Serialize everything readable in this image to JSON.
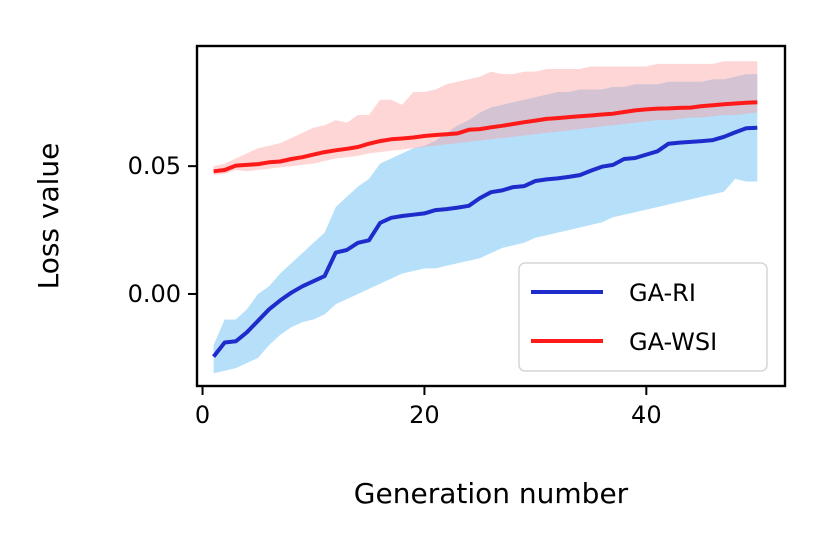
{
  "chart_data": {
    "type": "line",
    "title": "",
    "xlabel": "Generation number",
    "ylabel": "Loss value",
    "xlim": [
      -0.5,
      52.5
    ],
    "ylim": [
      -0.036,
      0.097
    ],
    "xticks": [
      0,
      20,
      40
    ],
    "xtick_labels": [
      "0",
      "20",
      "40"
    ],
    "yticks": [
      0.0,
      0.05
    ],
    "ytick_labels": [
      "0.00",
      "0.05"
    ],
    "grid": false,
    "legend_position": "lower-right",
    "legend_entries": [
      "GA-RI",
      "GA-WSI"
    ],
    "x": [
      1,
      2,
      3,
      4,
      5,
      6,
      7,
      8,
      9,
      10,
      11,
      12,
      13,
      14,
      15,
      16,
      17,
      18,
      19,
      20,
      21,
      22,
      23,
      24,
      25,
      26,
      27,
      28,
      29,
      30,
      31,
      32,
      33,
      34,
      35,
      36,
      37,
      38,
      39,
      40,
      41,
      42,
      43,
      44,
      45,
      46,
      47,
      48,
      49,
      50
    ],
    "series": [
      {
        "name": "GA-RI",
        "color": "#1f2ccc",
        "band_color": "#8fd0f7",
        "values": [
          -0.0245,
          -0.019,
          -0.0185,
          -0.015,
          -0.0105,
          -0.006,
          -0.0025,
          0.0005,
          0.003,
          0.005,
          0.007,
          0.0162,
          0.0172,
          0.02,
          0.021,
          0.0278,
          0.0298,
          0.0305,
          0.031,
          0.0315,
          0.0328,
          0.0332,
          0.0338,
          0.0345,
          0.0375,
          0.0398,
          0.0405,
          0.0418,
          0.0422,
          0.0442,
          0.0448,
          0.0452,
          0.0458,
          0.0465,
          0.0482,
          0.0498,
          0.0505,
          0.0528,
          0.0532,
          0.0545,
          0.0558,
          0.0588,
          0.0592,
          0.0595,
          0.0598,
          0.0602,
          0.0615,
          0.0632,
          0.0648,
          0.065
        ],
        "lower": [
          -0.031,
          -0.03,
          -0.029,
          -0.027,
          -0.025,
          -0.02,
          -0.016,
          -0.013,
          -0.011,
          -0.01,
          -0.008,
          -0.004,
          -0.002,
          0.0,
          0.002,
          0.004,
          0.006,
          0.008,
          0.009,
          0.01,
          0.01,
          0.011,
          0.012,
          0.013,
          0.014,
          0.016,
          0.018,
          0.019,
          0.02,
          0.022,
          0.023,
          0.024,
          0.025,
          0.026,
          0.027,
          0.028,
          0.03,
          0.031,
          0.032,
          0.033,
          0.034,
          0.035,
          0.036,
          0.037,
          0.038,
          0.039,
          0.04,
          0.045,
          0.044,
          0.044
        ],
        "upper": [
          -0.02,
          -0.01,
          -0.01,
          -0.006,
          0.0,
          0.003,
          0.008,
          0.012,
          0.016,
          0.02,
          0.024,
          0.034,
          0.038,
          0.042,
          0.045,
          0.051,
          0.053,
          0.055,
          0.057,
          0.058,
          0.06,
          0.063,
          0.066,
          0.068,
          0.071,
          0.073,
          0.074,
          0.075,
          0.076,
          0.077,
          0.078,
          0.079,
          0.079,
          0.08,
          0.08,
          0.08,
          0.081,
          0.081,
          0.082,
          0.082,
          0.082,
          0.083,
          0.083,
          0.083,
          0.083,
          0.084,
          0.084,
          0.085,
          0.086,
          0.086
        ]
      },
      {
        "name": "GA-WSI",
        "color": "#ff1a1a",
        "band_color": "#ff9d9d",
        "values": [
          0.048,
          0.0485,
          0.0502,
          0.0505,
          0.0508,
          0.0515,
          0.0518,
          0.0528,
          0.0535,
          0.0545,
          0.0555,
          0.0562,
          0.0568,
          0.0575,
          0.0588,
          0.0598,
          0.0605,
          0.0608,
          0.0612,
          0.0618,
          0.0622,
          0.0625,
          0.0628,
          0.0642,
          0.0645,
          0.0652,
          0.0658,
          0.0665,
          0.0672,
          0.0678,
          0.0685,
          0.0688,
          0.0692,
          0.0695,
          0.0698,
          0.0702,
          0.0705,
          0.0712,
          0.0718,
          0.0722,
          0.0725,
          0.0726,
          0.0728,
          0.0729,
          0.0735,
          0.0738,
          0.0742,
          0.0745,
          0.0748,
          0.075
        ],
        "lower": [
          0.0465,
          0.047,
          0.0485,
          0.048,
          0.0485,
          0.049,
          0.0495,
          0.05,
          0.0505,
          0.051,
          0.052,
          0.053,
          0.0535,
          0.054,
          0.055,
          0.0555,
          0.056,
          0.0565,
          0.057,
          0.0575,
          0.058,
          0.0585,
          0.059,
          0.0595,
          0.06,
          0.0605,
          0.061,
          0.0615,
          0.062,
          0.0625,
          0.063,
          0.0635,
          0.064,
          0.0645,
          0.065,
          0.0655,
          0.066,
          0.0665,
          0.067,
          0.0675,
          0.068,
          0.068,
          0.0685,
          0.069,
          0.069,
          0.0695,
          0.07,
          0.07,
          0.0705,
          0.071
        ],
        "upper": [
          0.05,
          0.051,
          0.053,
          0.055,
          0.057,
          0.058,
          0.059,
          0.061,
          0.063,
          0.065,
          0.066,
          0.068,
          0.067,
          0.07,
          0.07,
          0.076,
          0.076,
          0.074,
          0.079,
          0.079,
          0.08,
          0.082,
          0.083,
          0.084,
          0.085,
          0.087,
          0.086,
          0.086,
          0.087,
          0.087,
          0.088,
          0.088,
          0.088,
          0.088,
          0.089,
          0.089,
          0.089,
          0.089,
          0.089,
          0.089,
          0.09,
          0.09,
          0.09,
          0.09,
          0.09,
          0.09,
          0.091,
          0.091,
          0.091,
          0.091
        ]
      }
    ]
  }
}
